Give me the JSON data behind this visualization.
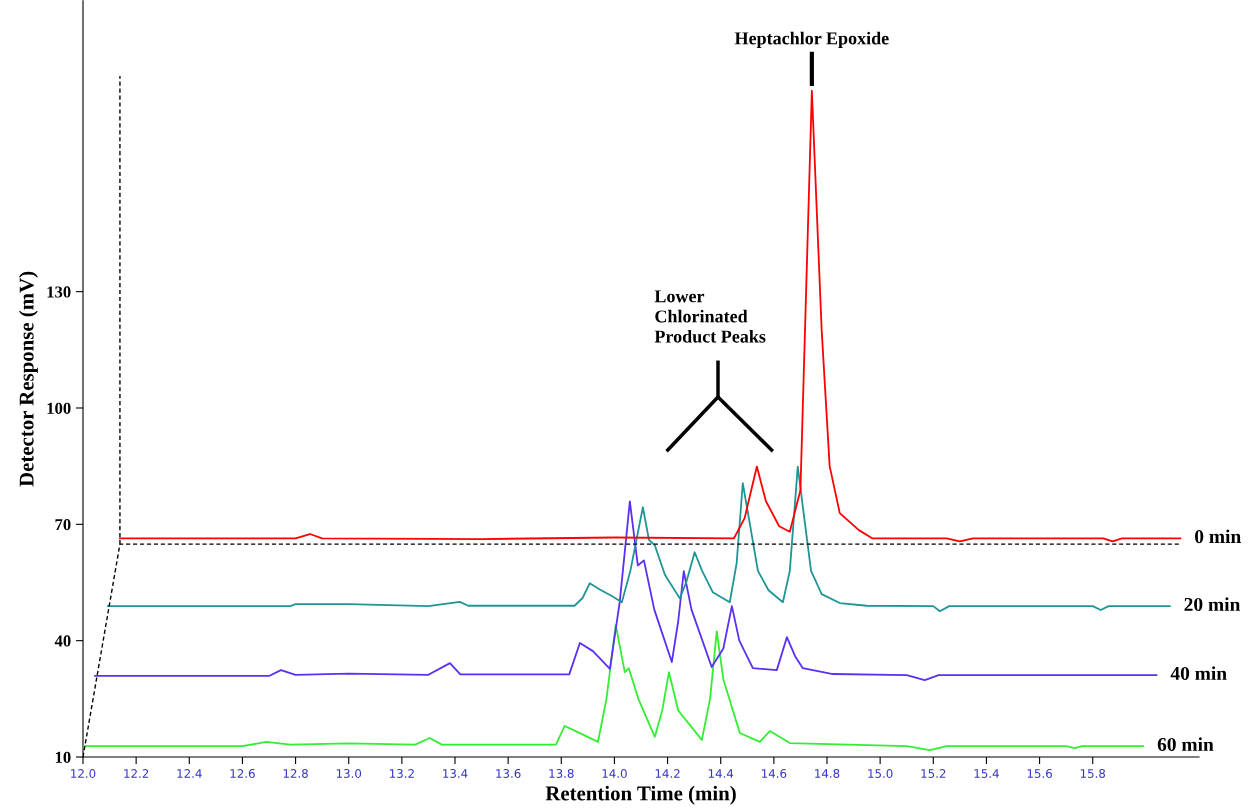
{
  "chart_data": {
    "type": "line",
    "xlabel": "Retention Time (min)",
    "ylabel": "Detector Response (mV)",
    "xlim": [
      12.0,
      16.2
    ],
    "ylim": [
      10,
      205
    ],
    "xticks": [
      {
        "value": 12.0,
        "label": "12.0"
      },
      12.2,
      12.4,
      12.6,
      12.8,
      {
        "value": 13.0,
        "label": "13.0"
      },
      13.2,
      13.4,
      13.6,
      13.8,
      {
        "value": 14.0,
        "label": "14.0"
      },
      14.2,
      14.4,
      14.6,
      14.8,
      {
        "value": 15.0,
        "label": "15.0"
      },
      15.2,
      15.4,
      15.6,
      15.8
    ],
    "yticks": [
      10,
      40,
      70,
      100,
      130
    ],
    "grid": false,
    "legend": false,
    "marker": "none",
    "line_style": "solid",
    "annotations": [
      {
        "text": "Heptachlor Epoxide",
        "x": 14.743,
        "y": 181.8
      },
      "Lower\nChlorinated\nProduct Peaks"
    ],
    "series": [
      {
        "color": "#000000",
        "line_style": "dashed",
        "x": [
          12.0,
          12.139,
          16.13,
          null,
          12.139,
          12.139
        ],
        "values": [
          10.0,
          64.9,
          64.9,
          null,
          64.9,
          185.6
        ]
      },
      {
        "name": "0 min",
        "color": "#ff0000",
        "x": [
          12.139,
          12.8,
          12.854,
          12.9,
          13.5,
          14.0,
          14.45,
          14.49,
          14.536,
          14.57,
          14.62,
          14.66,
          14.7,
          14.743,
          14.78,
          14.81,
          14.848,
          14.92,
          14.97,
          15.25,
          15.3,
          15.35,
          15.84,
          15.875,
          15.91,
          16.13
        ],
        "values": [
          66.4,
          66.4,
          67.5,
          66.4,
          66.2,
          66.6,
          66.4,
          71.6,
          84.9,
          76.0,
          69.5,
          68.1,
          78.8,
          181.8,
          120.0,
          85.0,
          72.9,
          68.5,
          66.4,
          66.4,
          65.6,
          66.4,
          66.4,
          65.6,
          66.4,
          66.4
        ]
      },
      {
        "name": "20 min",
        "color": "#1f9595",
        "x": [
          12.094,
          12.78,
          12.8,
          13.0,
          13.3,
          13.418,
          13.45,
          13.85,
          13.88,
          13.907,
          13.945,
          13.99,
          14.028,
          14.06,
          14.107,
          14.13,
          14.152,
          14.19,
          14.246,
          14.27,
          14.302,
          14.33,
          14.37,
          14.434,
          14.46,
          14.483,
          14.51,
          14.54,
          14.58,
          14.634,
          14.66,
          14.69,
          14.71,
          14.74,
          14.78,
          14.848,
          14.95,
          15.2,
          15.225,
          15.26,
          15.8,
          15.83,
          15.86,
          16.09
        ],
        "values": [
          48.9,
          48.9,
          49.4,
          49.4,
          48.9,
          50.0,
          49.0,
          49.0,
          51.0,
          54.8,
          53.2,
          51.5,
          49.9,
          58.0,
          74.4,
          66.0,
          64.6,
          57.0,
          50.9,
          55.0,
          62.8,
          58.0,
          52.5,
          49.9,
          60.0,
          80.6,
          70.0,
          58.0,
          53.0,
          49.9,
          58.0,
          84.9,
          74.0,
          58.0,
          52.0,
          49.7,
          49.0,
          48.9,
          47.6,
          48.9,
          48.9,
          47.9,
          48.9,
          48.9
        ]
      },
      {
        "name": "40 min",
        "color": "#5b2ff5",
        "x": [
          12.045,
          12.7,
          12.745,
          12.8,
          13.0,
          13.3,
          13.381,
          13.42,
          13.83,
          13.87,
          13.919,
          13.983,
          14.02,
          14.058,
          14.088,
          14.111,
          14.15,
          14.216,
          14.24,
          14.261,
          14.29,
          14.366,
          14.41,
          14.442,
          14.47,
          14.521,
          14.611,
          14.649,
          14.68,
          14.709,
          14.822,
          15.1,
          15.168,
          15.22,
          16.04
        ],
        "values": [
          30.9,
          30.9,
          32.4,
          31.2,
          31.5,
          31.2,
          34.2,
          31.3,
          31.3,
          39.4,
          37.3,
          32.7,
          50.0,
          75.9,
          59.4,
          60.7,
          48.0,
          34.5,
          45.0,
          57.9,
          48.0,
          33.2,
          38.0,
          48.9,
          40.0,
          32.9,
          32.4,
          40.9,
          36.0,
          32.9,
          31.4,
          31.1,
          29.8,
          31.1,
          31.1
        ]
      },
      {
        "name": "60 min",
        "color": "#33ee33",
        "x": [
          12.0,
          12.6,
          12.69,
          12.78,
          13.0,
          13.25,
          13.305,
          13.35,
          13.78,
          13.813,
          13.862,
          13.938,
          13.97,
          14.005,
          14.039,
          14.054,
          14.09,
          14.152,
          14.18,
          14.205,
          14.24,
          14.329,
          14.36,
          14.385,
          14.41,
          14.472,
          14.547,
          14.585,
          14.66,
          15.1,
          15.187,
          15.25,
          15.7,
          15.732,
          15.76,
          15.99
        ],
        "values": [
          12.8,
          12.8,
          13.9,
          13.2,
          13.5,
          13.2,
          14.9,
          13.2,
          13.2,
          18.0,
          16.4,
          13.9,
          25.0,
          44.0,
          31.9,
          32.9,
          25.0,
          15.2,
          22.0,
          31.9,
          22.0,
          14.4,
          25.0,
          42.4,
          30.0,
          16.2,
          13.9,
          16.7,
          13.6,
          12.8,
          11.8,
          12.8,
          12.8,
          12.3,
          12.8,
          12.8
        ]
      }
    ]
  }
}
